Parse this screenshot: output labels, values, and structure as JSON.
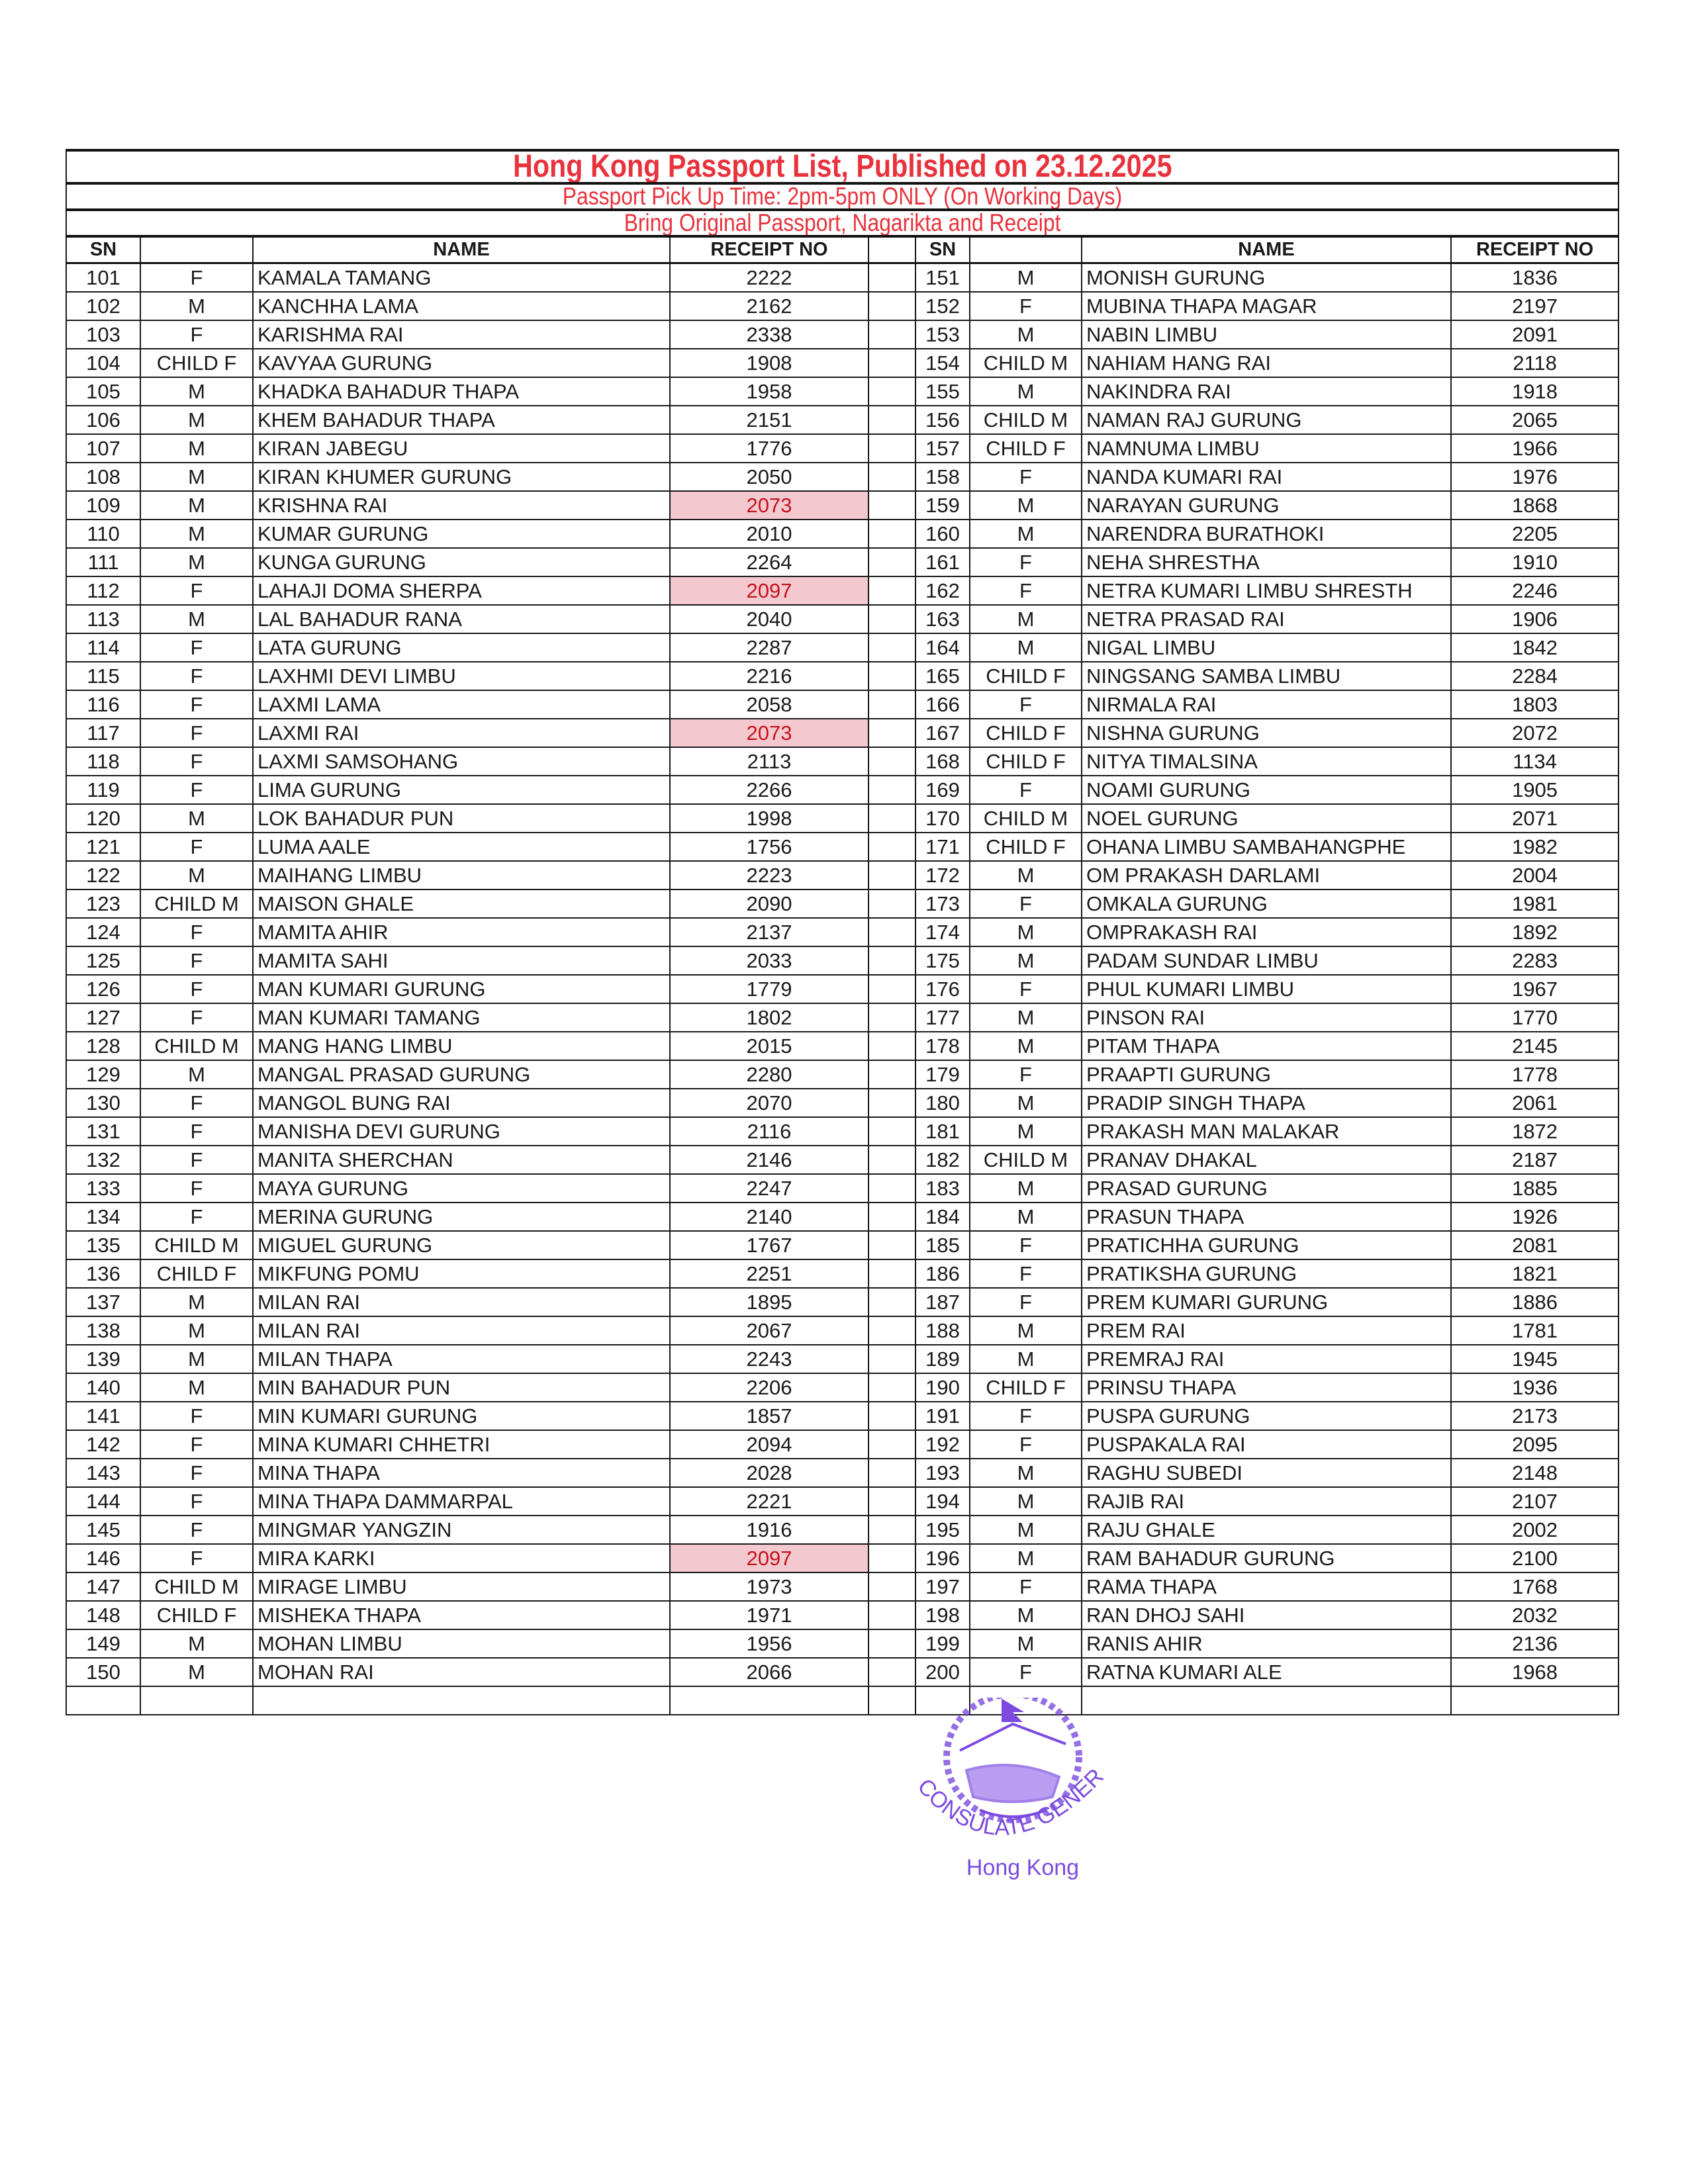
{
  "header": {
    "title": "Hong Kong Passport List, Published on 23.12.2025",
    "pickup_time": "Passport Pick Up Time: 2pm-5pm ONLY (On Working Days)",
    "instructions": "Bring Original Passport, Nagarikta and Receipt",
    "title_color": "#e8323c"
  },
  "columns": {
    "sn": "SN",
    "category": "",
    "name": "NAME",
    "receipt": "RECEIPT NO"
  },
  "highlight_color": "#f3c9cf",
  "left": [
    [
      "101",
      "F",
      "KAMALA TAMANG",
      "2222",
      false
    ],
    [
      "102",
      "M",
      "KANCHHA LAMA",
      "2162",
      false
    ],
    [
      "103",
      "F",
      "KARISHMA RAI",
      "2338",
      false
    ],
    [
      "104",
      "CHILD F",
      "KAVYAA GURUNG",
      "1908",
      false
    ],
    [
      "105",
      "M",
      "KHADKA BAHADUR THAPA",
      "1958",
      false
    ],
    [
      "106",
      "M",
      "KHEM BAHADUR THAPA",
      "2151",
      false
    ],
    [
      "107",
      "M",
      "KIRAN JABEGU",
      "1776",
      false
    ],
    [
      "108",
      "M",
      "KIRAN KHUMER GURUNG",
      "2050",
      false
    ],
    [
      "109",
      "M",
      "KRISHNA RAI",
      "2073",
      true
    ],
    [
      "110",
      "M",
      "KUMAR GURUNG",
      "2010",
      false
    ],
    [
      "111",
      "M",
      "KUNGA GURUNG",
      "2264",
      false
    ],
    [
      "112",
      "F",
      "LAHAJI DOMA SHERPA",
      "2097",
      true
    ],
    [
      "113",
      "M",
      "LAL BAHADUR RANA",
      "2040",
      false
    ],
    [
      "114",
      "F",
      "LATA GURUNG",
      "2287",
      false
    ],
    [
      "115",
      "F",
      "LAXHMI DEVI LIMBU",
      "2216",
      false
    ],
    [
      "116",
      "F",
      "LAXMI LAMA",
      "2058",
      false
    ],
    [
      "117",
      "F",
      "LAXMI RAI",
      "2073",
      true
    ],
    [
      "118",
      "F",
      "LAXMI SAMSOHANG",
      "2113",
      false
    ],
    [
      "119",
      "F",
      "LIMA GURUNG",
      "2266",
      false
    ],
    [
      "120",
      "M",
      "LOK BAHADUR PUN",
      "1998",
      false
    ],
    [
      "121",
      "F",
      "LUMA AALE",
      "1756",
      false
    ],
    [
      "122",
      "M",
      "MAIHANG LIMBU",
      "2223",
      false
    ],
    [
      "123",
      "CHILD M",
      "MAISON GHALE",
      "2090",
      false
    ],
    [
      "124",
      "F",
      "MAMITA AHIR",
      "2137",
      false
    ],
    [
      "125",
      "F",
      "MAMITA SAHI",
      "2033",
      false
    ],
    [
      "126",
      "F",
      "MAN KUMARI GURUNG",
      "1779",
      false
    ],
    [
      "127",
      "F",
      "MAN KUMARI TAMANG",
      "1802",
      false
    ],
    [
      "128",
      "CHILD M",
      "MANG HANG LIMBU",
      "2015",
      false
    ],
    [
      "129",
      "M",
      "MANGAL PRASAD GURUNG",
      "2280",
      false
    ],
    [
      "130",
      "F",
      "MANGOL BUNG RAI",
      "2070",
      false
    ],
    [
      "131",
      "F",
      "MANISHA DEVI GURUNG",
      "2116",
      false
    ],
    [
      "132",
      "F",
      "MANITA SHERCHAN",
      "2146",
      false
    ],
    [
      "133",
      "F",
      "MAYA GURUNG",
      "2247",
      false
    ],
    [
      "134",
      "F",
      "MERINA GURUNG",
      "2140",
      false
    ],
    [
      "135",
      "CHILD M",
      "MIGUEL GURUNG",
      "1767",
      false
    ],
    [
      "136",
      "CHILD F",
      "MIKFUNG POMU",
      "2251",
      false
    ],
    [
      "137",
      "M",
      "MILAN RAI",
      "1895",
      false
    ],
    [
      "138",
      "M",
      "MILAN RAI",
      "2067",
      false
    ],
    [
      "139",
      "M",
      "MILAN THAPA",
      "2243",
      false
    ],
    [
      "140",
      "M",
      "MIN BAHADUR PUN",
      "2206",
      false
    ],
    [
      "141",
      "F",
      "MIN KUMARI GURUNG",
      "1857",
      false
    ],
    [
      "142",
      "F",
      "MINA KUMARI CHHETRI",
      "2094",
      false
    ],
    [
      "143",
      "F",
      "MINA THAPA",
      "2028",
      false
    ],
    [
      "144",
      "F",
      "MINA THAPA DAMMARPAL",
      "2221",
      false
    ],
    [
      "145",
      "F",
      "MINGMAR YANGZIN",
      "1916",
      false
    ],
    [
      "146",
      "F",
      "MIRA KARKI",
      "2097",
      true
    ],
    [
      "147",
      "CHILD M",
      "MIRAGE LIMBU",
      "1973",
      false
    ],
    [
      "148",
      "CHILD F",
      "MISHEKA THAPA",
      "1971",
      false
    ],
    [
      "149",
      "M",
      "MOHAN LIMBU",
      "1956",
      false
    ],
    [
      "150",
      "M",
      "MOHAN RAI",
      "2066",
      false
    ]
  ],
  "right": [
    [
      "151",
      "M",
      "MONISH GURUNG",
      "1836",
      false
    ],
    [
      "152",
      "F",
      "MUBINA THAPA MAGAR",
      "2197",
      false
    ],
    [
      "153",
      "M",
      "NABIN LIMBU",
      "2091",
      false
    ],
    [
      "154",
      "CHILD M",
      "NAHIAM HANG RAI",
      "2118",
      false
    ],
    [
      "155",
      "M",
      "NAKINDRA RAI",
      "1918",
      false
    ],
    [
      "156",
      "CHILD M",
      "NAMAN RAJ GURUNG",
      "2065",
      false
    ],
    [
      "157",
      "CHILD F",
      "NAMNUMA LIMBU",
      "1966",
      false
    ],
    [
      "158",
      "F",
      "NANDA KUMARI RAI",
      "1976",
      false
    ],
    [
      "159",
      "M",
      "NARAYAN GURUNG",
      "1868",
      false
    ],
    [
      "160",
      "M",
      "NARENDRA BURATHOKI",
      "2205",
      false
    ],
    [
      "161",
      "F",
      "NEHA SHRESTHA",
      "1910",
      false
    ],
    [
      "162",
      "F",
      "NETRA KUMARI LIMBU SHRESTH",
      "2246",
      false
    ],
    [
      "163",
      "M",
      "NETRA PRASAD RAI",
      "1906",
      false
    ],
    [
      "164",
      "M",
      "NIGAL LIMBU",
      "1842",
      false
    ],
    [
      "165",
      "CHILD F",
      "NINGSANG SAMBA LIMBU",
      "2284",
      false
    ],
    [
      "166",
      "F",
      "NIRMALA RAI",
      "1803",
      false
    ],
    [
      "167",
      "CHILD F",
      "NISHNA GURUNG",
      "2072",
      false
    ],
    [
      "168",
      "CHILD F",
      "NITYA TIMALSINA",
      "1134",
      false
    ],
    [
      "169",
      "F",
      "NOAMI GURUNG",
      "1905",
      false
    ],
    [
      "170",
      "CHILD M",
      "NOEL GURUNG",
      "2071",
      false
    ],
    [
      "171",
      "CHILD F",
      "OHANA LIMBU SAMBAHANGPHE",
      "1982",
      false
    ],
    [
      "172",
      "M",
      "OM PRAKASH DARLAMI",
      "2004",
      false
    ],
    [
      "173",
      "F",
      "OMKALA GURUNG",
      "1981",
      false
    ],
    [
      "174",
      "M",
      "OMPRAKASH RAI",
      "1892",
      false
    ],
    [
      "175",
      "M",
      "PADAM SUNDAR LIMBU",
      "2283",
      false
    ],
    [
      "176",
      "F",
      "PHUL KUMARI LIMBU",
      "1967",
      false
    ],
    [
      "177",
      "M",
      "PINSON RAI",
      "1770",
      false
    ],
    [
      "178",
      "M",
      "PITAM THAPA",
      "2145",
      false
    ],
    [
      "179",
      "F",
      "PRAAPTI GURUNG",
      "1778",
      false
    ],
    [
      "180",
      "M",
      "PRADIP SINGH THAPA",
      "2061",
      false
    ],
    [
      "181",
      "M",
      "PRAKASH MAN MALAKAR",
      "1872",
      false
    ],
    [
      "182",
      "CHILD M",
      "PRANAV DHAKAL",
      "2187",
      false
    ],
    [
      "183",
      "M",
      "PRASAD GURUNG",
      "1885",
      false
    ],
    [
      "184",
      "M",
      "PRASUN THAPA",
      "1926",
      false
    ],
    [
      "185",
      "F",
      "PRATICHHA GURUNG",
      "2081",
      false
    ],
    [
      "186",
      "F",
      "PRATIKSHA GURUNG",
      "1821",
      false
    ],
    [
      "187",
      "F",
      "PREM KUMARI GURUNG",
      "1886",
      false
    ],
    [
      "188",
      "M",
      "PREM RAI",
      "1781",
      false
    ],
    [
      "189",
      "M",
      "PREMRAJ RAI",
      "1945",
      false
    ],
    [
      "190",
      "CHILD F",
      "PRINSU THAPA",
      "1936",
      false
    ],
    [
      "191",
      "F",
      "PUSPA GURUNG",
      "2173",
      false
    ],
    [
      "192",
      "F",
      "PUSPAKALA RAI",
      "2095",
      false
    ],
    [
      "193",
      "M",
      "RAGHU SUBEDI",
      "2148",
      false
    ],
    [
      "194",
      "M",
      "RAJIB RAI",
      "2107",
      false
    ],
    [
      "195",
      "M",
      "RAJU GHALE",
      "2002",
      false
    ],
    [
      "196",
      "M",
      "RAM BAHADUR GURUNG",
      "2100",
      false
    ],
    [
      "197",
      "F",
      "RAMA THAPA",
      "1768",
      false
    ],
    [
      "198",
      "M",
      "RAN DHOJ SAHI",
      "2032",
      false
    ],
    [
      "199",
      "M",
      "RANIS AHIR",
      "2136",
      false
    ],
    [
      "200",
      "F",
      "RATNA KUMARI ALE",
      "1968",
      false
    ]
  ],
  "stamp": {
    "arc_text": "CONSULATE GENERAL OF NEPAL",
    "city": "Hong Kong",
    "color": "#7b4be0"
  }
}
